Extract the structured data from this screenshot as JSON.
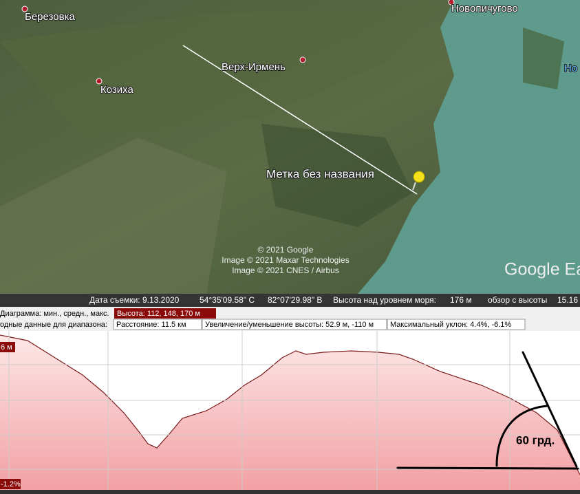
{
  "map": {
    "places": [
      "Березовка",
      "Новопичугово",
      "Верх-Ирмень",
      "Козиха"
    ],
    "marker": "Метка без названия",
    "partial_label": "Но",
    "credits": [
      "© 2021 Google",
      "Image © 2021 Maxar Technologies",
      "Image © 2021 CNES / Airbus"
    ],
    "logo": "Google Ea"
  },
  "status_bar": {
    "date": "Дата съемки: 9.13.2020",
    "lat": "54°35'09.58\" С",
    "lon": "82°07'29.98\" В",
    "elevation_label": "Высота над уровнем моря:",
    "elevation": "176 м",
    "view_label": "обзор с высоты",
    "view": "15.16"
  },
  "profile": {
    "chart_label": "Диаграмма: мин., средн., макс.",
    "height": "Высота: 112, 148, 170 м",
    "summary_label": "одные данные для диапазона:",
    "distance": "Расстояние: 11.5 км",
    "elevation_change": "Увеличение/уменьшение высоты: 52.9 м, -110 м",
    "max_slope": "Максимальный уклон: 4.4%, -6.1%",
    "top_label": "6 м",
    "bottom_label": "-1.2%",
    "annotation": "60 грд."
  }
}
